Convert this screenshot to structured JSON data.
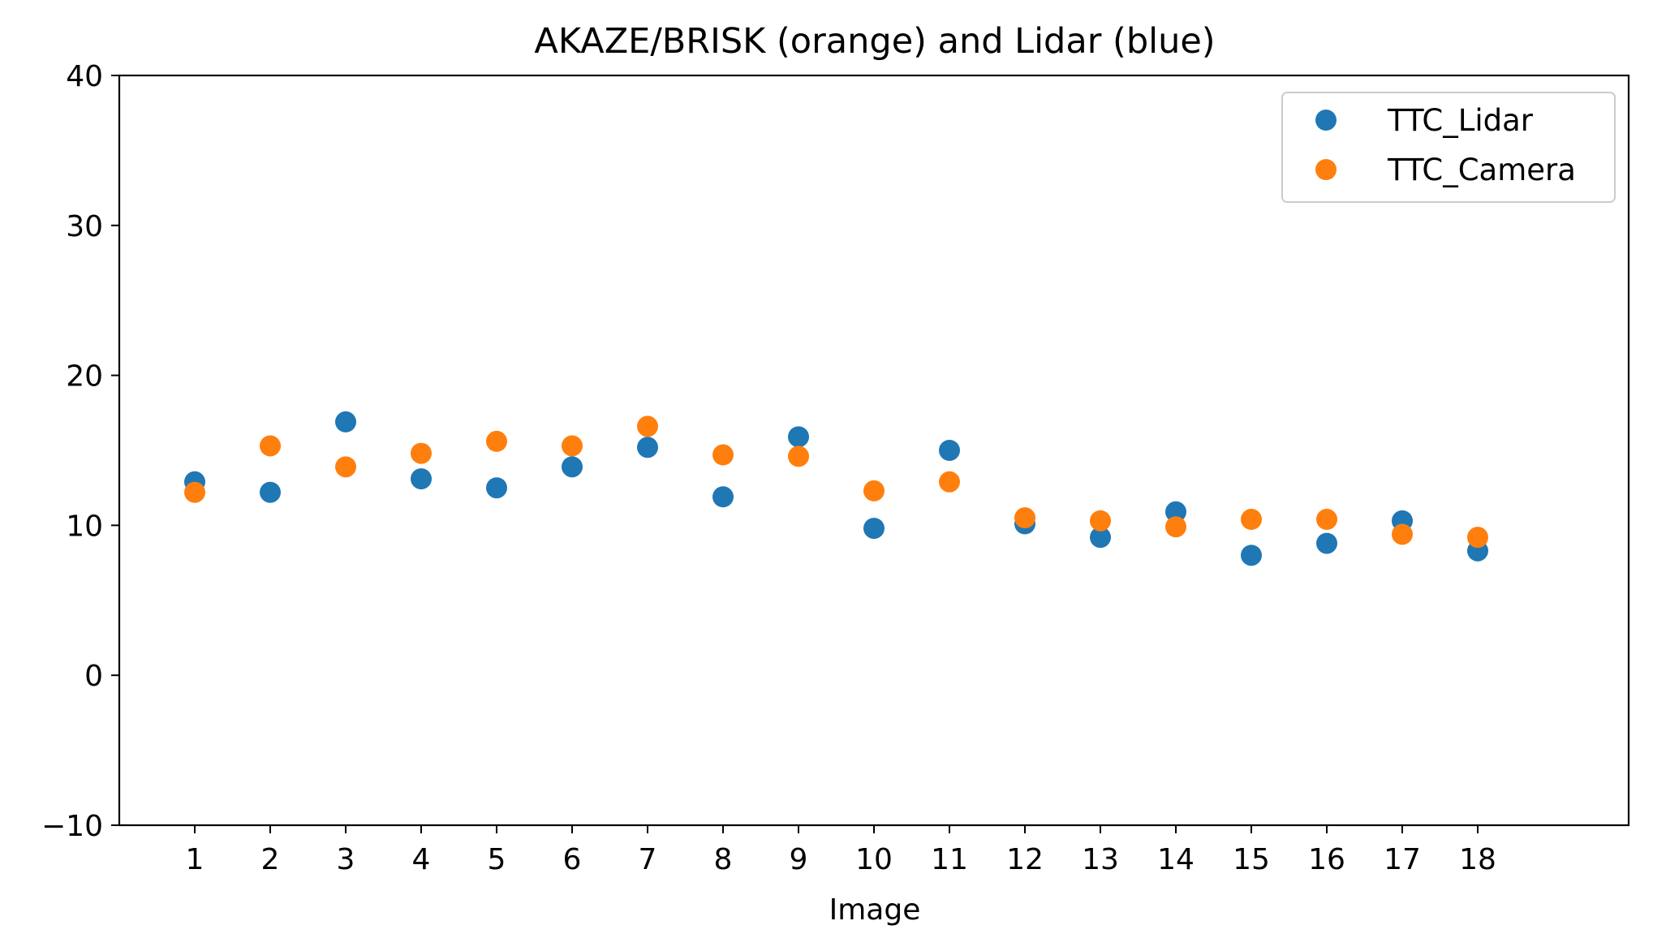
{
  "chart_data": {
    "type": "scatter",
    "title": "AKAZE/BRISK (orange) and Lidar (blue)",
    "xlabel": "Image",
    "ylabel": "",
    "x": [
      1,
      2,
      3,
      4,
      5,
      6,
      7,
      8,
      9,
      10,
      11,
      12,
      13,
      14,
      15,
      16,
      17,
      18
    ],
    "xticks": [
      1,
      2,
      3,
      4,
      5,
      6,
      7,
      8,
      9,
      10,
      11,
      12,
      13,
      14,
      15,
      16,
      17,
      18
    ],
    "xlim": [
      0,
      20
    ],
    "ylim": [
      -10,
      40
    ],
    "yticks": [
      -10,
      0,
      10,
      20,
      30,
      40
    ],
    "grid": false,
    "legend_position": "top-right",
    "series": [
      {
        "name": "TTC_Lidar",
        "color": "#1f77b4",
        "values": [
          12.9,
          12.2,
          16.9,
          13.1,
          12.5,
          13.9,
          15.2,
          11.9,
          15.9,
          9.8,
          15.0,
          10.1,
          9.2,
          10.9,
          8.0,
          8.8,
          10.3,
          8.3
        ]
      },
      {
        "name": "TTC_Camera",
        "color": "#ff7f0e",
        "values": [
          12.2,
          15.3,
          13.9,
          14.8,
          15.6,
          15.3,
          16.6,
          14.7,
          14.6,
          12.3,
          12.9,
          10.5,
          10.3,
          9.9,
          10.4,
          10.4,
          9.4,
          9.2
        ]
      }
    ]
  }
}
